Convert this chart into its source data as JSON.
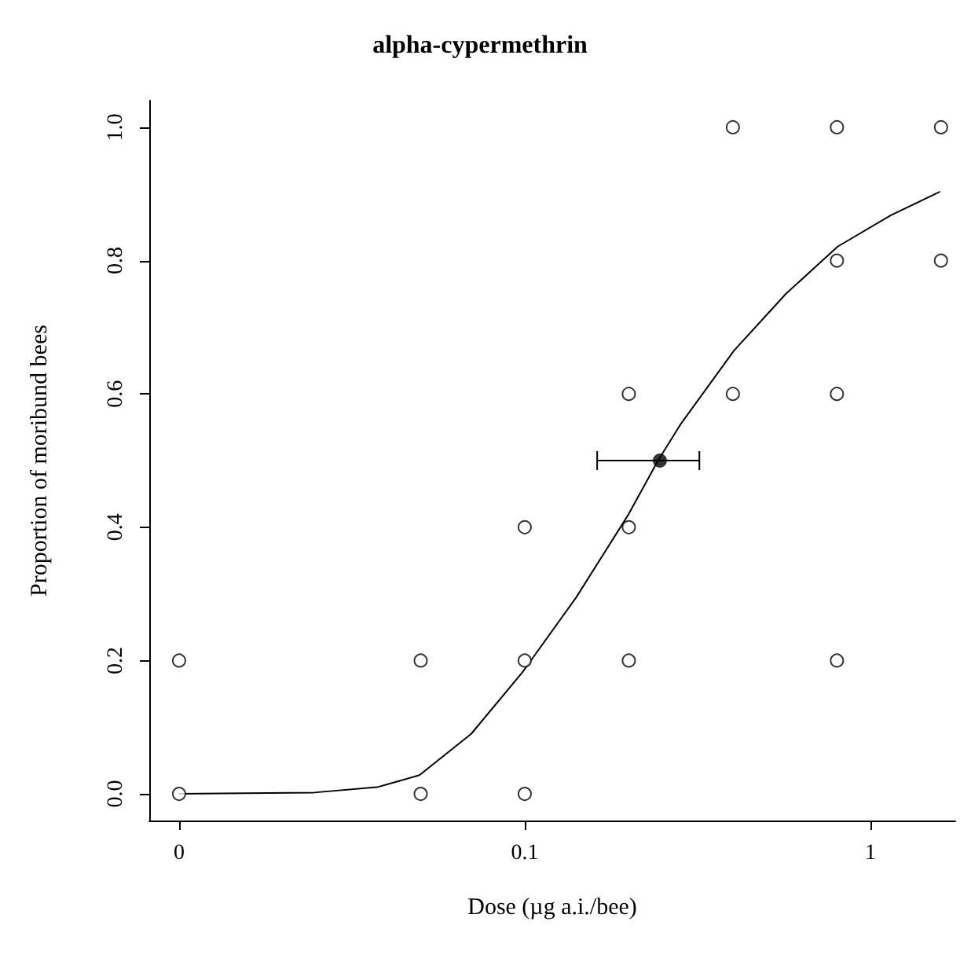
{
  "chart_data": {
    "type": "scatter",
    "title": "alpha-cypermethrin",
    "xlabel": "Dose (µg a.i./bee)",
    "ylabel": "Proportion of moribund bees",
    "log": "x",
    "xlim": [
      0.0082,
      1.76
    ],
    "xticks": [
      {
        "value": 0.01,
        "label": "0"
      },
      0.1,
      1
    ],
    "ylim": [
      -0.04,
      1.04
    ],
    "yticks": [
      {
        "value": 0,
        "label": "0.0"
      },
      {
        "value": 0.2,
        "label": "0.2"
      },
      {
        "value": 0.4,
        "label": "0.4"
      },
      {
        "value": 0.6,
        "label": "0.6"
      },
      {
        "value": 0.8,
        "label": "0.8"
      },
      {
        "value": 1,
        "label": "1.0"
      }
    ],
    "grid": false,
    "series": [
      {
        "marker": "circle",
        "color": "#000000",
        "x": [
          0.01,
          0.01,
          0.05,
          0.05,
          0.1,
          0.1,
          0.1,
          0.2,
          0.2,
          0.2,
          0.4,
          0.4,
          0.8,
          0.8,
          0.8,
          0.8,
          1.6,
          1.6
        ],
        "values": [
          0.2,
          0,
          0.2,
          0,
          0.4,
          0.2,
          0,
          0.6,
          0.4,
          0.2,
          1,
          0.6,
          1,
          0.8,
          0.6,
          0.2,
          1,
          0.8
        ]
      },
      {
        "type": "line",
        "marker": "none",
        "line_style": "solid",
        "color": "#000000",
        "x": [
          0.01,
          0.0246,
          0.0374,
          0.0496,
          0.07,
          0.099,
          0.141,
          0.2,
          0.243,
          0.282,
          0.403,
          0.569,
          0.804,
          1.146,
          1.585
        ],
        "values": [
          0,
          0.002,
          0.01,
          0.028,
          0.09,
          0.184,
          0.295,
          0.42,
          0.5,
          0.554,
          0.665,
          0.75,
          0.821,
          0.868,
          0.903
        ]
      },
      {
        "type": "scatter",
        "marker": "circle",
        "color": "#000000",
        "x": [
          0.246
        ],
        "values": [
          0.5
        ],
        "xerrors": [
          [
            0.162,
            0.32
          ]
        ]
      }
    ]
  }
}
